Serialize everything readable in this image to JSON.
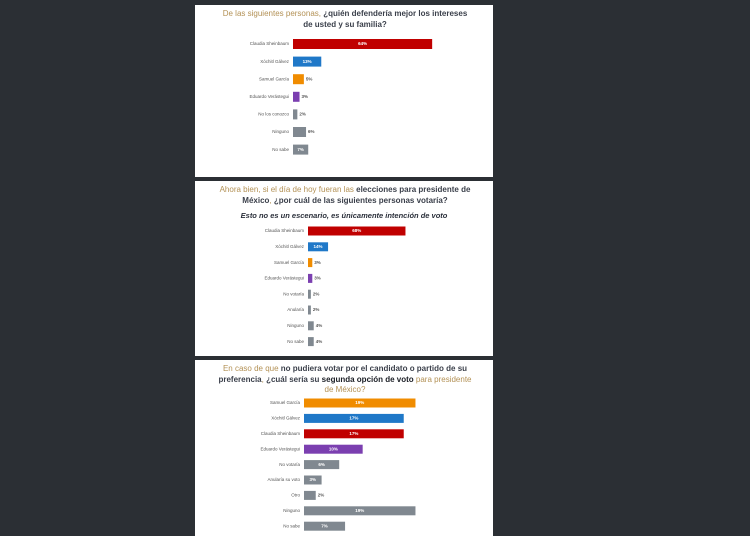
{
  "chart_data": [
    {
      "type": "bar",
      "title_parts": [
        {
          "text": "De las siguientes personas, "
        },
        {
          "text": "¿quién defendería mejor los intereses de usted y su familia?",
          "emphasis": true
        }
      ],
      "categories": [
        "Claudia Sheinbaum",
        "Xóchitl Gálvez",
        "Samuel García",
        "Eduardo Verástegui",
        "No los conozco",
        "Ninguno",
        "No sabe"
      ],
      "values": [
        64,
        13,
        5,
        3,
        2,
        6,
        7
      ],
      "value_labels": [
        "64%",
        "13%",
        "5%",
        "3%",
        "2%",
        "6%",
        "7%"
      ],
      "colors": [
        "#c00000",
        "#1f78c8",
        "#f08c00",
        "#7b3fb0",
        "#808890",
        "#808890",
        "#808890"
      ],
      "xlim": [
        0,
        86
      ]
    },
    {
      "type": "bar",
      "title_parts": [
        {
          "text": "Ahora bien, si el día de hoy fueran las "
        },
        {
          "text": "elecciones para presidente de México",
          "emphasis": true
        },
        {
          "text": ", "
        },
        {
          "text": "¿por cuál de las siguientes personas votaría?",
          "emphasis": true
        }
      ],
      "subtitle": "Esto no es un escenario, es únicamente intención de voto",
      "categories": [
        "Claudia Sheinbaum",
        "Xóchitl Gálvez",
        "Samuel García",
        "Eduardo Verástegui",
        "No votaría",
        "Anularía",
        "Ninguno",
        "No sabe"
      ],
      "values": [
        68,
        14,
        3,
        3,
        2,
        2,
        4,
        4
      ],
      "value_labels": [
        "68%",
        "14%",
        "3%",
        "3%",
        "2%",
        "2%",
        "4%",
        "4%"
      ],
      "colors": [
        "#c00000",
        "#1f78c8",
        "#f08c00",
        "#7b3fb0",
        "#808890",
        "#808890",
        "#808890",
        "#808890"
      ],
      "xlim": [
        0,
        120
      ]
    },
    {
      "type": "bar",
      "title_parts": [
        {
          "text": "En caso de que "
        },
        {
          "text": "no pudiera votar por el candidato o partido de su preferencia",
          "emphasis": true
        },
        {
          "text": ", "
        },
        {
          "text": "¿cuál sería su ",
          "emphasis": true
        },
        {
          "text": "segunda opción de voto",
          "emphasis": true,
          "strong": true
        },
        {
          "text": " para presidente de México?"
        }
      ],
      "categories": [
        "Samuel García",
        "Xóchitl Gálvez",
        "Claudia Sheinbaum",
        "Eduardo Verástegui",
        "No votaría",
        "Anularía su voto",
        "Otro",
        "Ninguno",
        "No sabe"
      ],
      "values": [
        19,
        17,
        17,
        10,
        6,
        3,
        2,
        19,
        7
      ],
      "value_labels": [
        "19%",
        "17%",
        "17%",
        "10%",
        "6%",
        "3%",
        "2%",
        "19%",
        "7%"
      ],
      "colors": [
        "#f08c00",
        "#1f78c8",
        "#c00000",
        "#7b3fb0",
        "#808890",
        "#808890",
        "#808890",
        "#808890",
        "#808890"
      ],
      "xlim": [
        0,
        30
      ]
    }
  ]
}
